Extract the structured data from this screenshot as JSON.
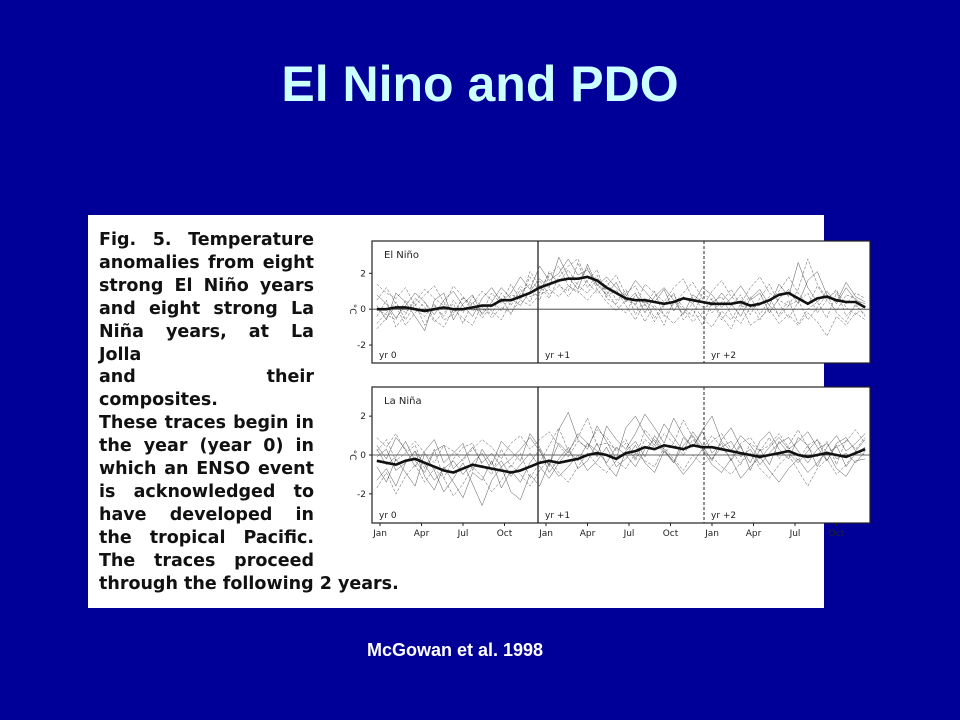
{
  "slide": {
    "title": "El Nino and PDO",
    "citation": "McGowan et al. 1998"
  },
  "figure": {
    "caption_lines": [
      "Temperature",
      "anomalies from eight",
      "strong El Niño years",
      "and eight strong La",
      "Niña years, at La Jolla",
      "and their composites.",
      "These traces begin in",
      "the year (year 0) in",
      "which an ENSO event",
      "is acknowledged to",
      "have developed in",
      "the tropical Pacific.",
      "The traces proceed",
      "through the following 2 years."
    ],
    "caption_prefix": "Fig. 5."
  },
  "chart_data": [
    {
      "type": "line",
      "title": "El Niño",
      "ylabel": "°C",
      "ylim": [
        -3,
        3.8
      ],
      "yticks": [
        2,
        0,
        -2
      ],
      "x_tick_labels": [],
      "year_labels": [
        "yr 0",
        "yr +1",
        "yr +2"
      ],
      "composite": [
        0.0,
        0.0,
        0.1,
        0.1,
        0.0,
        -0.1,
        0.0,
        0.1,
        0.0,
        0.0,
        0.1,
        0.2,
        0.2,
        0.5,
        0.5,
        0.7,
        0.9,
        1.2,
        1.4,
        1.6,
        1.7,
        1.7,
        1.8,
        1.6,
        1.2,
        0.9,
        0.6,
        0.5,
        0.5,
        0.4,
        0.3,
        0.4,
        0.6,
        0.5,
        0.4,
        0.3,
        0.3,
        0.3,
        0.4,
        0.2,
        0.3,
        0.5,
        0.8,
        0.9,
        0.6,
        0.3,
        0.6,
        0.7,
        0.5,
        0.4,
        0.4,
        0.1
      ],
      "individual_series": [
        [
          0.8,
          0.3,
          -0.5,
          0.2,
          0.9,
          0.4,
          -0.3,
          0.5,
          1.0,
          0.2,
          -0.4,
          0.6,
          1.2,
          0.4,
          0.9,
          1.8,
          1.1,
          2.4,
          1.6,
          2.0,
          2.8,
          1.9,
          2.2,
          1.4,
          0.8,
          1.5,
          0.4,
          0.9,
          -0.2,
          0.7,
          1.2,
          0.5,
          -0.3,
          0.8,
          0.4,
          0.2,
          0.9,
          0.3,
          -0.4,
          0.6,
          1.1,
          0.2,
          1.4,
          0.7,
          2.6,
          1.2,
          0.4,
          1.0,
          0.3,
          1.2,
          0.5,
          0.3
        ],
        [
          -0.8,
          -0.2,
          0.4,
          -0.6,
          0.3,
          -0.9,
          0.2,
          -0.4,
          0.5,
          -0.2,
          0.7,
          0.1,
          -0.3,
          0.9,
          0.2,
          1.1,
          0.4,
          1.6,
          0.8,
          1.3,
          1.0,
          2.6,
          1.2,
          1.9,
          0.6,
          0.3,
          1.1,
          -0.3,
          0.6,
          -0.5,
          0.3,
          0.8,
          0.1,
          -0.4,
          0.9,
          0.5,
          -0.6,
          0.2,
          0.8,
          -0.3,
          0.6,
          1.4,
          0.3,
          -0.5,
          0.4,
          0.9,
          -0.2,
          0.5,
          1.1,
          -0.4,
          0.2,
          -0.3
        ],
        [
          1.4,
          0.9,
          0.6,
          1.2,
          0.2,
          0.8,
          1.3,
          0.4,
          -0.2,
          0.6,
          0.3,
          1.0,
          0.5,
          -0.1,
          0.8,
          0.6,
          1.8,
          0.9,
          2.1,
          1.4,
          0.7,
          1.5,
          2.3,
          1.1,
          1.6,
          0.5,
          0.9,
          1.3,
          0.2,
          1.0,
          -0.4,
          0.3,
          0.9,
          1.5,
          0.6,
          -0.2,
          0.4,
          1.1,
          0.2,
          0.7,
          -0.3,
          0.5,
          1.0,
          1.8,
          0.9,
          0.2,
          1.3,
          0.5,
          -0.1,
          0.8,
          0.6,
          0.1
        ],
        [
          -0.4,
          0.5,
          -1.0,
          -0.3,
          0.6,
          0.1,
          -0.7,
          -0.2,
          0.3,
          -0.8,
          0.4,
          -0.5,
          0.2,
          0.6,
          -0.3,
          0.9,
          1.4,
          0.5,
          1.9,
          2.4,
          1.3,
          0.9,
          1.6,
          2.2,
          0.7,
          1.1,
          0.2,
          -0.6,
          0.4,
          0.1,
          -0.9,
          0.5,
          0.0,
          -0.7,
          -0.2,
          0.6,
          -0.4,
          -1.1,
          0.1,
          0.3,
          -0.6,
          0.2,
          -0.3,
          0.5,
          -0.8,
          0.0,
          0.4,
          -0.5,
          0.9,
          0.1,
          -0.3,
          0.2
        ],
        [
          0.2,
          -0.6,
          0.9,
          0.4,
          -0.4,
          -1.2,
          0.5,
          0.9,
          -0.6,
          0.3,
          0.8,
          -0.3,
          0.4,
          1.2,
          0.6,
          0.2,
          1.0,
          1.7,
          1.2,
          2.9,
          1.8,
          1.1,
          2.5,
          1.3,
          1.8,
          1.2,
          0.7,
          1.6,
          1.0,
          0.4,
          1.1,
          -0.1,
          0.7,
          0.3,
          1.2,
          0.8,
          0.1,
          0.6,
          1.3,
          0.5,
          0.9,
          -0.2,
          0.6,
          1.1,
          0.3,
          1.6,
          2.1,
          0.8,
          0.4,
          1.5,
          0.7,
          0.4
        ],
        [
          -1.1,
          -0.5,
          0.2,
          -0.9,
          -0.2,
          0.4,
          -0.6,
          -1.0,
          0.0,
          -0.5,
          -0.9,
          0.3,
          -0.1,
          -0.6,
          0.4,
          1.3,
          0.7,
          0.9,
          2.0,
          1.5,
          2.2,
          1.3,
          0.9,
          1.7,
          1.0,
          0.2,
          -0.2,
          0.8,
          0.3,
          -0.7,
          0.2,
          0.9,
          -0.6,
          0.0,
          -0.9,
          0.4,
          0.7,
          -0.3,
          -0.8,
          0.1,
          0.2,
          0.7,
          -0.4,
          0.2,
          0.5,
          -0.6,
          0.1,
          0.8,
          -0.2,
          -0.7,
          0.3,
          -0.4
        ],
        [
          0.5,
          1.2,
          0.3,
          -0.2,
          0.4,
          1.1,
          0.6,
          0.2,
          1.3,
          0.7,
          0.1,
          -0.2,
          0.9,
          0.3,
          1.4,
          0.5,
          2.1,
          1.3,
          0.6,
          1.8,
          2.4,
          2.8,
          1.5,
          0.9,
          1.3,
          1.9,
          0.8,
          0.2,
          1.4,
          0.9,
          0.4,
          1.2,
          1.7,
          0.6,
          0.1,
          1.0,
          1.6,
          0.7,
          0.3,
          1.2,
          1.8,
          0.9,
          0.5,
          0.2,
          1.1,
          2.8,
          1.4,
          0.6,
          1.0,
          0.3,
          0.9,
          0.6
        ],
        [
          0.0,
          -0.3,
          -0.6,
          0.5,
          0.0,
          -0.4,
          0.3,
          -0.6,
          -0.3,
          0.7,
          -0.1,
          0.2,
          -0.5,
          0.1,
          -0.2,
          0.5,
          0.2,
          0.8,
          1.1,
          0.7,
          1.3,
          1.0,
          0.5,
          1.1,
          0.4,
          -0.1,
          0.5,
          0.3,
          -0.7,
          0.2,
          -0.3,
          -0.8,
          -0.2,
          0.3,
          -0.5,
          -1.0,
          -0.1,
          -0.6,
          0.3,
          -0.9,
          -0.5,
          0.0,
          -0.8,
          -0.3,
          -0.9,
          -0.2,
          -0.7,
          -1.5,
          -0.4,
          -0.9,
          -0.2,
          -0.6
        ]
      ]
    },
    {
      "type": "line",
      "title": "La Niña",
      "ylabel": "°C",
      "ylim": [
        -3.5,
        3.5
      ],
      "yticks": [
        2,
        0,
        -2
      ],
      "x_tick_labels": [
        "Jan",
        "Apr",
        "Jul",
        "Oct",
        "Jan",
        "Apr",
        "Jul",
        "Oct",
        "Jan",
        "Apr",
        "Jul",
        "Oct"
      ],
      "year_labels": [
        "yr 0",
        "yr +1",
        "yr +2"
      ],
      "composite": [
        -0.3,
        -0.4,
        -0.5,
        -0.3,
        -0.2,
        -0.4,
        -0.6,
        -0.8,
        -0.9,
        -0.7,
        -0.5,
        -0.6,
        -0.7,
        -0.8,
        -0.9,
        -0.8,
        -0.6,
        -0.4,
        -0.3,
        -0.4,
        -0.3,
        -0.2,
        0.0,
        0.1,
        0.0,
        -0.2,
        0.1,
        0.2,
        0.4,
        0.3,
        0.5,
        0.4,
        0.3,
        0.5,
        0.4,
        0.4,
        0.3,
        0.2,
        0.1,
        0.0,
        -0.1,
        0.0,
        0.1,
        0.2,
        0.0,
        -0.1,
        0.0,
        0.1,
        0.0,
        -0.1,
        0.1,
        0.3
      ],
      "individual_series": [
        [
          0.5,
          -0.2,
          0.9,
          0.3,
          -0.6,
          0.2,
          0.8,
          -0.4,
          0.1,
          0.6,
          -0.8,
          0.3,
          -0.5,
          0.7,
          0.2,
          -0.3,
          1.1,
          0.4,
          -0.6,
          1.3,
          2.2,
          0.8,
          0.3,
          1.5,
          0.7,
          -0.2,
          1.4,
          2.0,
          1.1,
          0.5,
          1.6,
          0.9,
          0.2,
          1.2,
          0.5,
          -0.3,
          0.8,
          1.4,
          0.4,
          -0.4,
          0.7,
          1.2,
          0.3,
          -0.2,
          0.9,
          0.5,
          -0.6,
          0.4,
          1.0,
          0.2,
          0.6,
          1.1
        ],
        [
          -1.3,
          -0.7,
          -1.6,
          -0.4,
          0.2,
          -1.1,
          -1.8,
          -0.6,
          -1.4,
          -2.2,
          -0.9,
          -1.3,
          -0.3,
          -1.7,
          -0.8,
          -1.4,
          -0.4,
          0.3,
          -0.9,
          -0.2,
          0.4,
          -0.7,
          -0.3,
          0.6,
          -0.5,
          -1.1,
          0.2,
          0.7,
          -0.1,
          1.0,
          0.3,
          -0.4,
          0.9,
          0.4,
          1.2,
          0.1,
          0.6,
          -0.3,
          0.5,
          -0.8,
          0.3,
          -0.5,
          0.7,
          0.1,
          -0.4,
          0.2,
          0.8,
          -0.3,
          0.5,
          -0.6,
          0.1,
          0.4
        ],
        [
          0.2,
          0.8,
          -0.3,
          0.1,
          0.5,
          -0.7,
          0.3,
          -1.2,
          -0.2,
          0.4,
          0.6,
          -0.5,
          -1.0,
          0.3,
          -0.6,
          0.1,
          -1.2,
          -0.4,
          0.5,
          1.4,
          0.2,
          0.9,
          1.9,
          0.5,
          0.6,
          0.3,
          0.8,
          -0.2,
          1.3,
          0.7,
          0.1,
          0.6,
          1.8,
          0.9,
          0.2,
          0.7,
          1.1,
          0.3,
          -0.5,
          0.6,
          0.2,
          0.9,
          -0.2,
          0.5,
          1.3,
          0.4,
          -0.1,
          0.7,
          -0.5,
          0.8,
          0.3,
          0.9
        ],
        [
          -0.6,
          -1.4,
          -0.2,
          -0.9,
          -1.6,
          0.1,
          -0.8,
          -1.9,
          -1.2,
          -0.4,
          -1.5,
          -2.6,
          -1.3,
          -0.6,
          -1.9,
          -2.3,
          -1.0,
          -1.6,
          -0.4,
          -1.1,
          -0.6,
          0.0,
          -0.8,
          -0.3,
          0.4,
          -0.6,
          -0.2,
          0.5,
          -0.4,
          -0.9,
          0.2,
          -0.3,
          -1.0,
          -0.4,
          0.3,
          -0.5,
          -0.9,
          -0.2,
          -1.2,
          -0.6,
          -0.1,
          -0.8,
          -1.4,
          -0.7,
          -0.2,
          -0.9,
          -0.4,
          0.2,
          -0.7,
          -1.1,
          -0.3,
          -0.2
        ],
        [
          0.3,
          -0.5,
          -0.1,
          0.7,
          -0.3,
          -0.9,
          0.2,
          0.5,
          -0.7,
          -0.2,
          0.4,
          -0.4,
          0.1,
          -0.6,
          -0.2,
          0.3,
          0.9,
          0.2,
          -0.5,
          0.6,
          0.1,
          1.1,
          0.6,
          -0.1,
          1.5,
          0.8,
          0.3,
          1.1,
          2.1,
          1.4,
          0.6,
          1.9,
          1.0,
          0.4,
          1.3,
          2.0,
          0.7,
          0.2,
          1.0,
          0.5,
          -0.2,
          0.4,
          0.9,
          0.3,
          0.7,
          1.2,
          0.4,
          -0.3,
          0.6,
          0.9,
          0.2,
          0.8
        ],
        [
          -1.7,
          -0.9,
          -2.0,
          -1.1,
          -0.5,
          -1.4,
          -0.7,
          -1.2,
          -2.1,
          -1.5,
          -0.6,
          -1.1,
          -1.9,
          -1.3,
          -0.5,
          -1.0,
          -1.6,
          -0.8,
          -0.2,
          -0.9,
          -1.4,
          -0.6,
          0.1,
          -0.5,
          -0.9,
          -0.3,
          -0.7,
          0.1,
          -0.3,
          -0.6,
          0.4,
          -0.2,
          -0.8,
          0.0,
          -0.5,
          -0.1,
          -0.6,
          -1.0,
          -0.4,
          0.1,
          -0.7,
          -1.2,
          -0.5,
          0.0,
          -0.8,
          -1.6,
          -0.7,
          -0.2,
          -1.0,
          -0.5,
          0.2,
          0.0
        ],
        [
          0.9,
          0.4,
          1.1,
          0.2,
          0.7,
          0.1,
          -0.4,
          0.5,
          0.2,
          -0.3,
          0.3,
          0.8,
          0.4,
          -0.2,
          0.6,
          1.0,
          0.3,
          0.8,
          1.2,
          0.5,
          -0.1,
          0.7,
          0.4,
          1.3,
          0.9,
          0.2,
          0.6,
          -0.3,
          0.8,
          0.4,
          1.1,
          0.6,
          0.0,
          0.8,
          0.3,
          1.0,
          0.4,
          -0.2,
          0.6,
          0.9,
          0.2,
          0.5,
          1.1,
          0.4,
          -0.3,
          0.5,
          0.8,
          0.1,
          0.4,
          0.7,
          1.3,
          0.6
        ],
        [
          -0.1,
          0.3,
          -0.8,
          -0.4,
          0.2,
          -0.5,
          -1.3,
          -0.7,
          -0.3,
          -1.0,
          -0.4,
          0.1,
          -0.8,
          -0.3,
          -1.1,
          -0.5,
          0.1,
          -0.6,
          -1.2,
          -0.4,
          0.2,
          -0.3,
          0.6,
          0.2,
          -0.4,
          0.4,
          0.0,
          -0.6,
          0.3,
          0.8,
          0.2,
          -0.4,
          0.5,
          1.0,
          0.3,
          -0.2,
          0.4,
          0.7,
          -0.1,
          0.3,
          -0.5,
          0.1,
          0.6,
          0.9,
          0.2,
          -0.4,
          0.3,
          0.6,
          -0.2,
          0.1,
          -0.4,
          0.2
        ]
      ]
    }
  ]
}
